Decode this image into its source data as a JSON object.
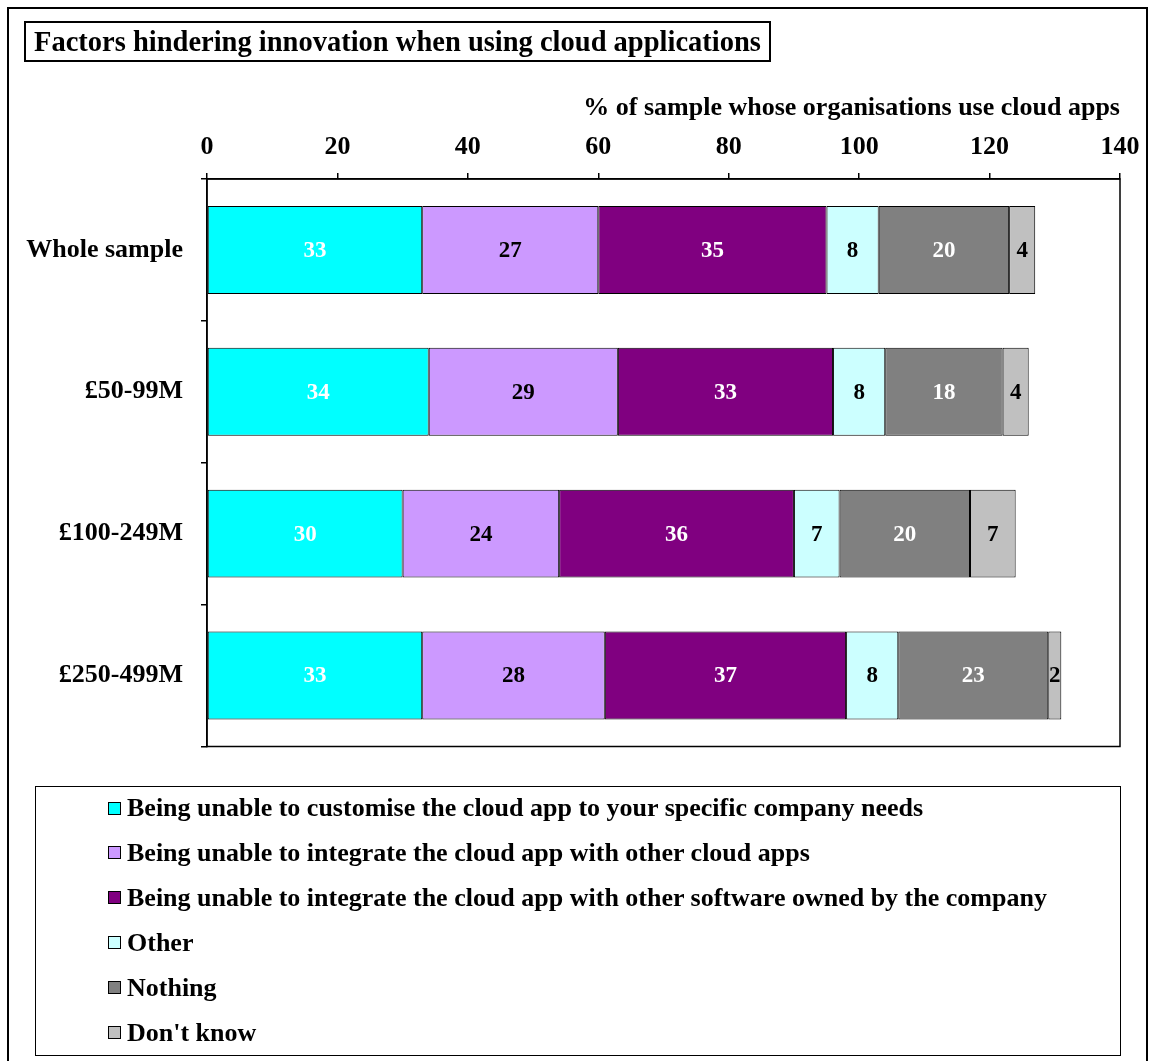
{
  "chart_data": {
    "type": "bar",
    "orientation": "horizontal",
    "stacked": true,
    "title": "Factors hindering innovation when using cloud applications",
    "xlabel": "% of sample whose organisations use cloud apps",
    "categories": [
      "Whole sample",
      "£50-99M",
      "£100-249M",
      "£250-499M"
    ],
    "series": [
      {
        "name": "Being unable to customise the cloud app to your specific company needs",
        "color": "#00ffff",
        "values": [
          33,
          34,
          30,
          33
        ]
      },
      {
        "name": "Being unable to integrate the cloud app with other cloud apps",
        "color": "#cc99ff",
        "values": [
          27,
          29,
          24,
          28
        ]
      },
      {
        "name": "Being unable to integrate the cloud app with other software owned by the company",
        "color": "#800080",
        "values": [
          35,
          33,
          36,
          37
        ]
      },
      {
        "name": "Other",
        "color": "#ccffff",
        "values": [
          8,
          8,
          7,
          8
        ]
      },
      {
        "name": "Nothing",
        "color": "#808080",
        "values": [
          20,
          18,
          20,
          23
        ]
      },
      {
        "name": "Don't know",
        "color": "#c0c0c0",
        "values": [
          4,
          4,
          7,
          2
        ]
      }
    ],
    "xlim": [
      0,
      140
    ],
    "xticks": [
      0,
      20,
      40,
      60,
      80,
      100,
      120,
      140
    ],
    "legend": "bottom",
    "data_labels": true
  }
}
